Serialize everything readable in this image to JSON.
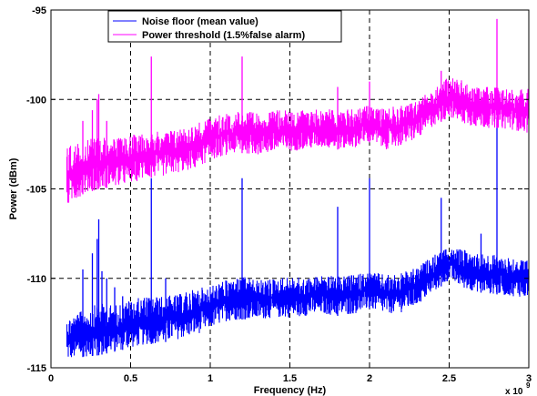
{
  "chart_data": {
    "type": "line",
    "title": "",
    "xlabel": "Frequency (Hz)",
    "ylabel": "Power (dBm)",
    "x_multiplier_label": "x 10",
    "x_multiplier_exponent": "9",
    "xlim": [
      0,
      3
    ],
    "ylim": [
      -115,
      -95
    ],
    "x_ticks": [
      0,
      0.5,
      1,
      1.5,
      2,
      2.5,
      3
    ],
    "x_tick_labels": [
      "0",
      "0.5",
      "1",
      "1.5",
      "2",
      "2.5",
      "3"
    ],
    "y_ticks": [
      -115,
      -110,
      -105,
      -100,
      -95
    ],
    "y_tick_labels": [
      "-115",
      "-110",
      "-105",
      "-100",
      "-95"
    ],
    "grid": true,
    "grid_style": "dashed",
    "legend_position": "top-left",
    "series": [
      {
        "name": "Noise floor (mean value)",
        "color": "#0000ff",
        "envelope": {
          "x": [
            0.1,
            0.2,
            0.3,
            0.4,
            0.5,
            0.6,
            0.7,
            0.8,
            0.9,
            1.0,
            1.1,
            1.2,
            1.3,
            1.4,
            1.5,
            1.6,
            1.7,
            1.8,
            1.9,
            2.0,
            2.1,
            2.2,
            2.3,
            2.4,
            2.5,
            2.6,
            2.7,
            2.8,
            2.9,
            3.0
          ],
          "upper": [
            -112.2,
            -111.8,
            -111.4,
            -111.5,
            -111.2,
            -111.0,
            -111.0,
            -110.9,
            -110.6,
            -110.4,
            -110.1,
            -109.9,
            -110.1,
            -110.0,
            -109.9,
            -110.0,
            -109.8,
            -109.9,
            -109.8,
            -109.6,
            -109.8,
            -109.7,
            -109.4,
            -108.7,
            -108.3,
            -108.4,
            -108.6,
            -108.7,
            -108.8,
            -109.0
          ],
          "lower": [
            -114.6,
            -114.4,
            -114.3,
            -114.1,
            -113.9,
            -113.7,
            -113.6,
            -113.4,
            -113.2,
            -112.8,
            -112.4,
            -112.3,
            -112.3,
            -112.2,
            -112.2,
            -112.1,
            -112.0,
            -112.1,
            -112.0,
            -111.7,
            -112.0,
            -111.9,
            -111.5,
            -110.8,
            -110.1,
            -110.6,
            -110.8,
            -110.9,
            -111.0,
            -111.1
          ]
        },
        "spikes": [
          {
            "x": 0.2,
            "y": -109.5
          },
          {
            "x": 0.26,
            "y": -108.6
          },
          {
            "x": 0.29,
            "y": -107.8
          },
          {
            "x": 0.3,
            "y": -106.7
          },
          {
            "x": 0.32,
            "y": -109.6
          },
          {
            "x": 0.35,
            "y": -110.0
          },
          {
            "x": 0.4,
            "y": -110.5
          },
          {
            "x": 0.45,
            "y": -111.0
          },
          {
            "x": 0.63,
            "y": -104.4
          },
          {
            "x": 0.72,
            "y": -110.0
          },
          {
            "x": 1.2,
            "y": -104.4
          },
          {
            "x": 1.8,
            "y": -106.0
          },
          {
            "x": 2.0,
            "y": -104.4
          },
          {
            "x": 2.45,
            "y": -105.5
          },
          {
            "x": 2.7,
            "y": -107.5
          },
          {
            "x": 2.8,
            "y": -101.0
          }
        ]
      },
      {
        "name": "Power threshold (1.5%false alarm)",
        "color": "#ff00ff",
        "envelope": {
          "x": [
            0.1,
            0.2,
            0.3,
            0.4,
            0.5,
            0.6,
            0.7,
            0.8,
            0.9,
            1.0,
            1.1,
            1.2,
            1.3,
            1.4,
            1.5,
            1.6,
            1.7,
            1.8,
            1.9,
            2.0,
            2.1,
            2.2,
            2.3,
            2.4,
            2.5,
            2.6,
            2.7,
            2.8,
            2.9,
            3.0
          ],
          "upper": [
            -102.6,
            -102.4,
            -102.0,
            -102.2,
            -102.0,
            -101.8,
            -101.8,
            -101.6,
            -101.4,
            -101.0,
            -100.8,
            -100.6,
            -100.8,
            -100.6,
            -100.6,
            -100.6,
            -100.5,
            -100.6,
            -100.5,
            -100.3,
            -100.5,
            -100.3,
            -100.1,
            -99.3,
            -98.7,
            -99.0,
            -99.3,
            -99.3,
            -99.4,
            -99.4
          ],
          "lower": [
            -106.0,
            -105.3,
            -105.0,
            -104.9,
            -104.7,
            -104.4,
            -104.3,
            -104.1,
            -103.9,
            -103.4,
            -103.1,
            -103.0,
            -103.1,
            -103.0,
            -102.9,
            -102.8,
            -102.7,
            -102.8,
            -102.7,
            -102.4,
            -102.8,
            -102.6,
            -102.2,
            -101.5,
            -101.0,
            -101.4,
            -101.6,
            -101.6,
            -101.7,
            -101.9
          ]
        },
        "spikes": [
          {
            "x": 0.2,
            "y": -101.2
          },
          {
            "x": 0.26,
            "y": -100.6
          },
          {
            "x": 0.29,
            "y": -100.0
          },
          {
            "x": 0.3,
            "y": -99.7
          },
          {
            "x": 0.35,
            "y": -101.2
          },
          {
            "x": 0.63,
            "y": -97.6
          },
          {
            "x": 1.2,
            "y": -97.6
          },
          {
            "x": 1.8,
            "y": -99.3
          },
          {
            "x": 2.0,
            "y": -99.0
          },
          {
            "x": 2.45,
            "y": -98.4
          },
          {
            "x": 2.8,
            "y": -95.5
          }
        ]
      }
    ]
  }
}
